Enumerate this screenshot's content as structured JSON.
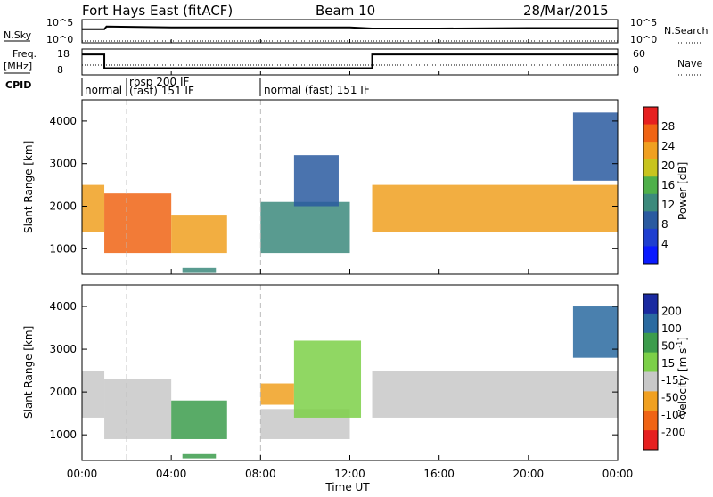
{
  "header": {
    "station": "Fort Hays East (fitACF)",
    "beam": "Beam 10",
    "date": "28/Mar/2015"
  },
  "left_labels": {
    "nsky": "N.Sky",
    "freq_line1": "Freq.",
    "freq_line2": "[MHz]",
    "cpid": "CPID"
  },
  "right_labels": {
    "nsearch": "N.Search",
    "nave": "Nave"
  },
  "noise_ticks_left": [
    "10^5",
    "10^0"
  ],
  "noise_ticks_right": [
    "10^5",
    "10^0"
  ],
  "freq_ticks": [
    "18",
    "8"
  ],
  "nave_ticks": [
    "60",
    "0"
  ],
  "cpid_segments": [
    {
      "start": 0,
      "text": "normal"
    },
    {
      "start": 1.0,
      "text": "rbsp 200 IF"
    },
    {
      "start": 1.0,
      "text": "(fast) 151 IF"
    },
    {
      "start": 8.0,
      "text": "normal (fast) 151 IF"
    }
  ],
  "colors": {
    "power": [
      "#0a1aff",
      "#1f3fd0",
      "#2a5aa0",
      "#3c8a7c",
      "#4fb04a",
      "#c8c41e",
      "#f0a020",
      "#f06414",
      "#e62020"
    ],
    "velocity": [
      "#e62020",
      "#f06414",
      "#f0a020",
      "#c8c8c8",
      "#7cd048",
      "#3c9c4c",
      "#2a6aa0",
      "#1a2aa0"
    ]
  },
  "chart_data": [
    {
      "type": "line",
      "title": "",
      "ylabel": "N.Sky",
      "x_range_hours": [
        0,
        24
      ],
      "series": [
        {
          "name": "N.Sky",
          "x": [
            0,
            1,
            1.1,
            4,
            8,
            12,
            13,
            16,
            20,
            24
          ],
          "values": [
            1000,
            1000,
            5000,
            3000,
            3000,
            3000,
            1500,
            1500,
            2000,
            2000
          ]
        },
        {
          "name": "N.Search",
          "x": [
            0,
            24
          ],
          "values": [
            1,
            1
          ]
        }
      ]
    },
    {
      "type": "line",
      "ylabel": "Freq. [MHz]",
      "yticks": [
        8,
        18
      ],
      "x_range_hours": [
        0,
        24
      ],
      "series": [
        {
          "name": "Freq.",
          "x": [
            0,
            1.0,
            1.0,
            13.0,
            13.0,
            24
          ],
          "values": [
            17.5,
            17.5,
            10.5,
            10.5,
            17.5,
            17.5
          ]
        },
        {
          "name": "Nave",
          "x": [
            0,
            24
          ],
          "values": [
            9,
            9
          ]
        }
      ]
    },
    {
      "type": "heatmap",
      "title": "",
      "xlabel": "Time UT",
      "ylabel": "Slant Range [km]",
      "x_ticks": [
        "00:00",
        "04:00",
        "08:00",
        "12:00",
        "16:00",
        "20:00",
        "00:00"
      ],
      "y_ticks": [
        1000,
        2000,
        3000,
        4000
      ],
      "ylim": [
        400,
        4500
      ],
      "colorbar_label": "Power [dB]",
      "colorbar_ticks": [
        4,
        8,
        12,
        16,
        20,
        24,
        28
      ],
      "regions": [
        {
          "t": [
            0,
            1.0
          ],
          "r": [
            1400,
            2500
          ],
          "level": 22
        },
        {
          "t": [
            1.0,
            4.0
          ],
          "r": [
            900,
            2300
          ],
          "level": 24
        },
        {
          "t": [
            4.0,
            6.5
          ],
          "r": [
            900,
            1800
          ],
          "level": 22
        },
        {
          "t": [
            4.5,
            6.0
          ],
          "r": [
            450,
            550
          ],
          "level": 10
        },
        {
          "t": [
            8.0,
            12.0
          ],
          "r": [
            900,
            2100
          ],
          "level": 12
        },
        {
          "t": [
            9.5,
            11.5
          ],
          "r": [
            2000,
            3200
          ],
          "level": 8
        },
        {
          "t": [
            13.0,
            24.0
          ],
          "r": [
            1400,
            2500
          ],
          "level": 20
        },
        {
          "t": [
            22.0,
            24.0
          ],
          "r": [
            2600,
            4200
          ],
          "level": 6
        }
      ]
    },
    {
      "type": "heatmap",
      "title": "",
      "xlabel": "Time UT",
      "ylabel": "Slant Range [km]",
      "x_ticks": [
        "00:00",
        "04:00",
        "08:00",
        "12:00",
        "16:00",
        "20:00",
        "00:00"
      ],
      "y_ticks": [
        1000,
        2000,
        3000,
        4000
      ],
      "ylim": [
        400,
        4500
      ],
      "colorbar_label": "Velocity [m s^-1]",
      "colorbar_ticks": [
        200,
        100,
        50,
        15,
        -15,
        -50,
        -100,
        -200
      ],
      "regions": [
        {
          "t": [
            0,
            1.0
          ],
          "r": [
            1400,
            2500
          ],
          "level": 0
        },
        {
          "t": [
            1.0,
            4.0
          ],
          "r": [
            900,
            2300
          ],
          "level": 0
        },
        {
          "t": [
            4.0,
            6.5
          ],
          "r": [
            900,
            1800
          ],
          "level": 40
        },
        {
          "t": [
            4.5,
            6.0
          ],
          "r": [
            450,
            550
          ],
          "level": 60
        },
        {
          "t": [
            8.0,
            9.5
          ],
          "r": [
            1700,
            2200
          ],
          "level": -60
        },
        {
          "t": [
            8.0,
            12.0
          ],
          "r": [
            900,
            1600
          ],
          "level": 0
        },
        {
          "t": [
            9.5,
            12.5
          ],
          "r": [
            1400,
            3200
          ],
          "level": 20
        },
        {
          "t": [
            13.0,
            24.0
          ],
          "r": [
            1400,
            2500
          ],
          "level": 0
        },
        {
          "t": [
            22.0,
            24.0
          ],
          "r": [
            2800,
            4000
          ],
          "level": 150
        }
      ]
    }
  ]
}
